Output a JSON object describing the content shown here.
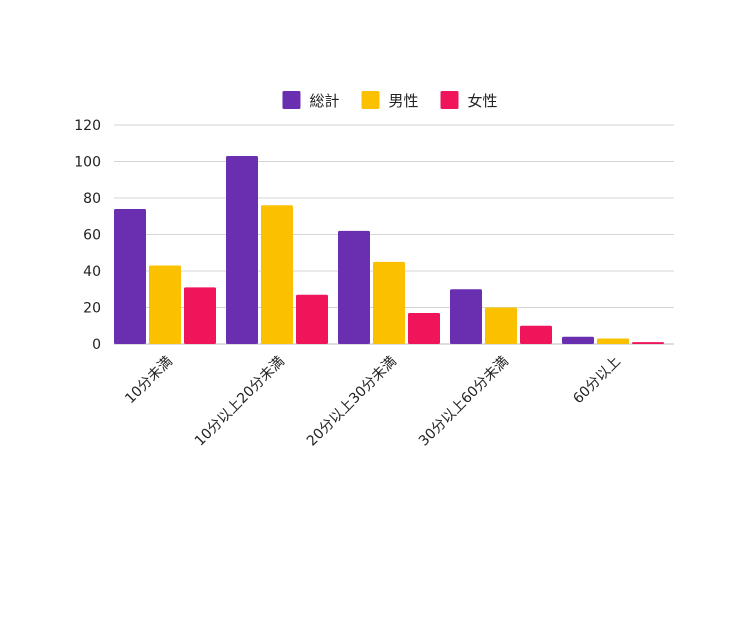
{
  "chart_data": {
    "type": "bar",
    "categories": [
      "10分未満",
      "10分以上20分未満",
      "20分以上30分未満",
      "30分以上60分未満",
      "60分以上"
    ],
    "series": [
      {
        "name": "総計",
        "values": [
          74,
          103,
          62,
          30,
          4
        ],
        "color": "#6a2fb0"
      },
      {
        "name": "男性",
        "values": [
          43,
          76,
          45,
          20,
          3
        ],
        "color": "#fbc100"
      },
      {
        "name": "女性",
        "values": [
          31,
          27,
          17,
          10,
          1
        ],
        "color": "#f0145a"
      }
    ],
    "y_ticks": [
      "0",
      "20",
      "40",
      "60",
      "80",
      "100",
      "120"
    ],
    "ylim": [
      0,
      120
    ],
    "grid": true,
    "legend_position": "top-center",
    "x_label_rotation": "diagonal"
  }
}
